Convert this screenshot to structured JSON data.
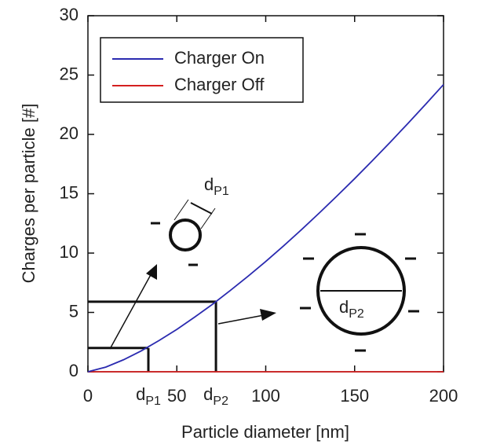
{
  "chart_data": {
    "type": "line",
    "x_label": "Particle diameter [nm]",
    "y_label": "Charges per particle [#]",
    "x": [
      0,
      10,
      20,
      30,
      40,
      50,
      60,
      70,
      80,
      90,
      100,
      110,
      120,
      130,
      140,
      150,
      160,
      170,
      180,
      190,
      200
    ],
    "series": [
      {
        "name": "Charger On",
        "color": "#2b2bb0",
        "values": [
          0,
          0.39,
          1.01,
          1.76,
          2.63,
          3.57,
          4.6,
          5.68,
          6.84,
          8.04,
          9.29,
          10.6,
          11.96,
          13.36,
          14.8,
          16.27,
          17.79,
          19.34,
          20.93,
          22.55,
          24.2
        ]
      },
      {
        "name": "Charger Off",
        "color": "#d42020",
        "values": [
          0,
          0,
          0,
          0,
          0,
          0,
          0,
          0,
          0,
          0,
          0,
          0,
          0,
          0,
          0,
          0,
          0,
          0,
          0,
          0,
          0
        ]
      }
    ],
    "xlim": [
      0,
      200
    ],
    "ylim": [
      0,
      30
    ],
    "xticks": [
      0,
      50,
      100,
      150,
      200
    ],
    "yticks": [
      0,
      5,
      10,
      15,
      20,
      25,
      30
    ],
    "legend": "upper left",
    "markers": [
      {
        "label": "d",
        "subscript": "P1",
        "x": 34,
        "y": 2
      },
      {
        "label": "d",
        "subscript": "P2",
        "x": 72,
        "y": 5.9
      }
    ]
  }
}
